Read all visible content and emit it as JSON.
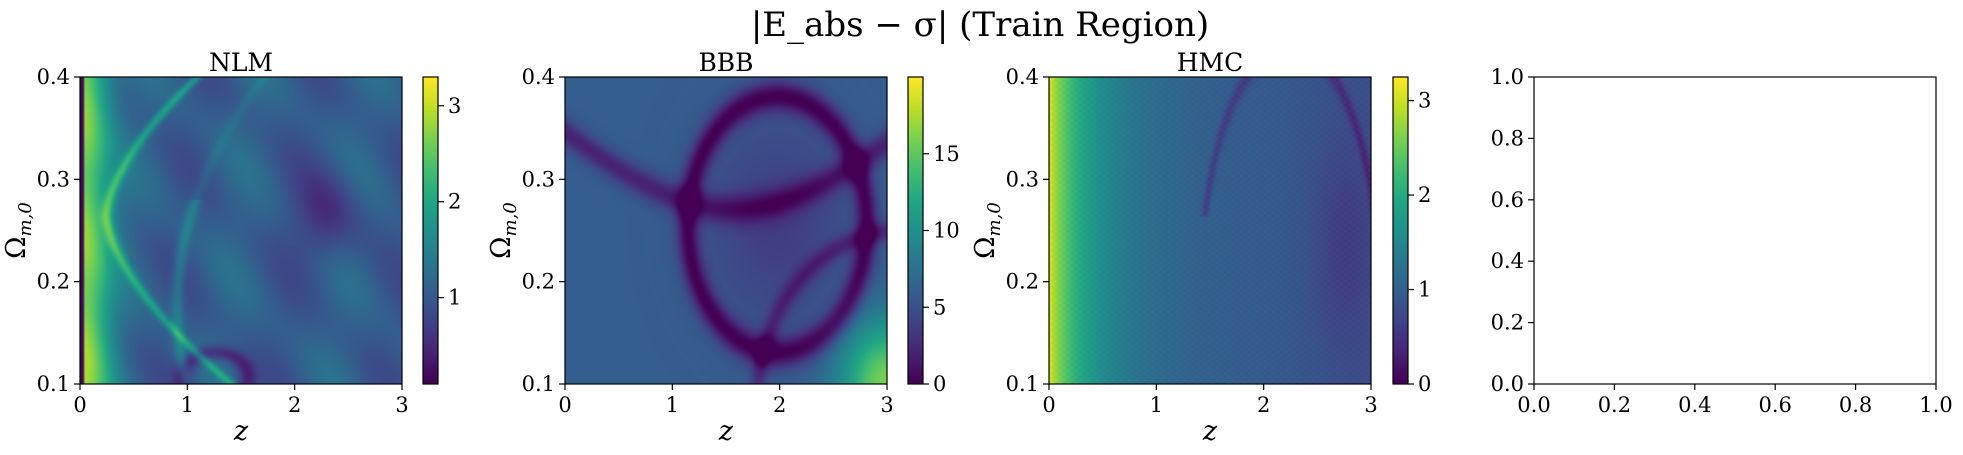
{
  "figure": {
    "title": "|E_abs − σ| (Train Region)"
  },
  "chart_data": [
    {
      "type": "heatmap",
      "title": "NLM",
      "xlabel": "z",
      "ylabel": "Ω_m,0",
      "xlim": [
        0,
        3
      ],
      "ylim": [
        0.1,
        0.4
      ],
      "x_ticks": [
        "0",
        "1",
        "2",
        "3"
      ],
      "y_ticks": [
        "0.1",
        "0.2",
        "0.3",
        "0.4"
      ],
      "colorbar": {
        "range": [
          0.1,
          3.3
        ],
        "ticks": [
          "1",
          "2",
          "3"
        ],
        "colormap": "viridis"
      },
      "field": "nlm"
    },
    {
      "type": "heatmap",
      "title": "BBB",
      "xlabel": "z",
      "ylabel": "Ω_m,0",
      "xlim": [
        0,
        3
      ],
      "ylim": [
        0.1,
        0.4
      ],
      "x_ticks": [
        "0",
        "1",
        "2",
        "3"
      ],
      "y_ticks": [
        "0.1",
        "0.2",
        "0.3",
        "0.4"
      ],
      "colorbar": {
        "range": [
          0,
          20
        ],
        "ticks": [
          "0",
          "5",
          "10",
          "15"
        ],
        "colormap": "viridis"
      },
      "field": "bbb"
    },
    {
      "type": "heatmap",
      "title": "HMC",
      "xlabel": "z",
      "ylabel": "Ω_m,0",
      "xlim": [
        0,
        3
      ],
      "ylim": [
        0.1,
        0.4
      ],
      "x_ticks": [
        "0",
        "1",
        "2",
        "3"
      ],
      "y_ticks": [
        "0.1",
        "0.2",
        "0.3",
        "0.4"
      ],
      "colorbar": {
        "range": [
          0,
          3.25
        ],
        "ticks": [
          "0",
          "1",
          "2",
          "3"
        ],
        "colormap": "viridis"
      },
      "field": "hmc"
    },
    {
      "type": "scatter",
      "title": "",
      "xlabel": "",
      "ylabel": "",
      "xlim": [
        0,
        1
      ],
      "ylim": [
        0,
        1
      ],
      "x_ticks": [
        "0.0",
        "0.2",
        "0.4",
        "0.6",
        "0.8",
        "1.0"
      ],
      "y_ticks": [
        "0.0",
        "0.2",
        "0.4",
        "0.6",
        "0.8",
        "1.0"
      ],
      "series": []
    }
  ]
}
